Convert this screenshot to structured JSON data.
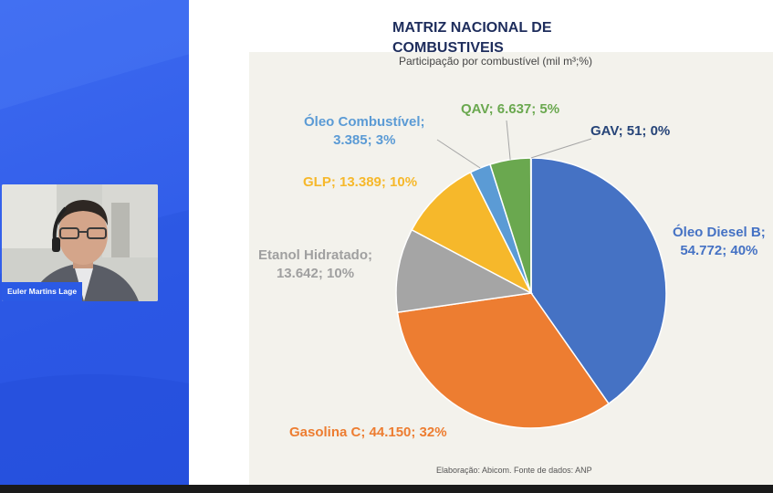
{
  "presenter": {
    "name": "Euler Martins Lage"
  },
  "slide": {
    "title": "MATRIZ NACIONAL DE COMBUSTIVEIS",
    "subtitle": "Participação por combustível (mil m³;%)",
    "source": "Elaboração: Abicom. Fonte de dados: ANP"
  },
  "chart_data": {
    "type": "pie",
    "title": "MATRIZ NACIONAL DE COMBUSTIVEIS",
    "subtitle": "Participação por combustível (mil m³;%)",
    "slices": [
      {
        "label": "Óleo Diesel B",
        "value": 54772,
        "value_text": "54.772",
        "percent": "40%",
        "color": "#4572c4",
        "label_line1": "Óleo Diesel B;",
        "label_line2": "54.772; 40%"
      },
      {
        "label": "Gasolina C",
        "value": 44150,
        "value_text": "44.150",
        "percent": "32%",
        "color": "#ed7d31",
        "label_line1": "Gasolina C; 44.150; 32%",
        "label_line2": ""
      },
      {
        "label": "Etanol Hidratado",
        "value": 13642,
        "value_text": "13.642",
        "percent": "10%",
        "color": "#a5a5a5",
        "label_line1": "Etanol Hidratado;",
        "label_line2": "13.642; 10%"
      },
      {
        "label": "GLP",
        "value": 13389,
        "value_text": "13.389",
        "percent": "10%",
        "color": "#f6b82b",
        "label_line1": "GLP; 13.389; 10%",
        "label_line2": ""
      },
      {
        "label": "Óleo Combustível",
        "value": 3385,
        "value_text": "3.385",
        "percent": "3%",
        "color": "#5b9bd5",
        "label_line1": "Óleo Combustível;",
        "label_line2": "3.385; 3%"
      },
      {
        "label": "QAV",
        "value": 6637,
        "value_text": "6.637",
        "percent": "5%",
        "color": "#6aa84f",
        "label_line1": "QAV; 6.637; 5%",
        "label_line2": ""
      },
      {
        "label": "GAV",
        "value": 51,
        "value_text": "51",
        "percent": "0%",
        "color": "#264478",
        "label_line1": "GAV; 51; 0%",
        "label_line2": ""
      }
    ]
  }
}
